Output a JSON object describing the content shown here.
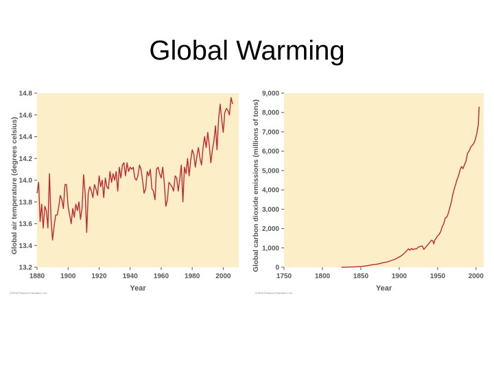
{
  "slide": {
    "title": "Global Warming"
  },
  "chart_data": [
    {
      "type": "line",
      "title": "",
      "xlabel": "Year",
      "ylabel": "Global air temperature (degrees celsius)",
      "xlim": [
        1880,
        2010
      ],
      "ylim": [
        13.2,
        14.8
      ],
      "x_ticks": [
        1880,
        1900,
        1920,
        1940,
        1960,
        1980,
        2000
      ],
      "y_ticks": [
        "13.2",
        "13.4",
        "13.6",
        "13.8",
        "14.0",
        "14.2",
        "14.4",
        "14.6",
        "14.8"
      ],
      "background_color": "#fcefc8",
      "line_color": "#c0272d",
      "grid": false,
      "credit": "©2008 Pearson Education, Inc.",
      "x": [
        1880,
        1881,
        1882,
        1883,
        1884,
        1885,
        1886,
        1887,
        1888,
        1889,
        1890,
        1891,
        1892,
        1893,
        1894,
        1895,
        1896,
        1897,
        1898,
        1899,
        1900,
        1901,
        1902,
        1903,
        1904,
        1905,
        1906,
        1907,
        1908,
        1909,
        1910,
        1911,
        1912,
        1913,
        1914,
        1915,
        1916,
        1917,
        1918,
        1919,
        1920,
        1921,
        1922,
        1923,
        1924,
        1925,
        1926,
        1927,
        1928,
        1929,
        1930,
        1931,
        1932,
        1933,
        1934,
        1935,
        1936,
        1937,
        1938,
        1939,
        1940,
        1941,
        1942,
        1943,
        1944,
        1945,
        1946,
        1947,
        1948,
        1949,
        1950,
        1951,
        1952,
        1953,
        1954,
        1955,
        1956,
        1957,
        1958,
        1959,
        1960,
        1961,
        1962,
        1963,
        1964,
        1965,
        1966,
        1967,
        1968,
        1969,
        1970,
        1971,
        1972,
        1973,
        1974,
        1975,
        1976,
        1977,
        1978,
        1979,
        1980,
        1981,
        1982,
        1983,
        1984,
        1985,
        1986,
        1987,
        1988,
        1989,
        1990,
        1991,
        1992,
        1993,
        1994,
        1995,
        1996,
        1997,
        1998,
        1999,
        2000,
        2001,
        2002,
        2003,
        2004,
        2005,
        2006
      ],
      "y": [
        13.88,
        13.98,
        13.62,
        13.78,
        13.56,
        13.76,
        13.72,
        13.56,
        14.06,
        13.64,
        13.45,
        13.58,
        13.68,
        13.68,
        13.76,
        13.86,
        13.82,
        13.74,
        13.96,
        13.96,
        13.76,
        13.68,
        13.6,
        13.74,
        13.66,
        13.78,
        13.72,
        13.8,
        13.64,
        13.74,
        14.05,
        13.88,
        13.52,
        13.88,
        13.94,
        13.9,
        13.84,
        13.96,
        13.92,
        13.86,
        14.04,
        13.94,
        14.0,
        13.84,
        14.02,
        13.94,
        13.92,
        14.08,
        13.98,
        14.06,
        14.0,
        14.08,
        13.9,
        14.12,
        14.02,
        14.14,
        14.16,
        14.04,
        14.16,
        14.08,
        14.12,
        14.1,
        14.12,
        14.02,
        14.0,
        14.04,
        14.14,
        14.1,
        14.0,
        13.88,
        13.92,
        14.08,
        14.04,
        14.1,
        13.92,
        13.9,
        13.82,
        14.1,
        14.12,
        14.06,
        14.02,
        14.12,
        13.98,
        13.76,
        13.82,
        13.98,
        13.96,
        13.94,
        13.9,
        14.04,
        14.02,
        13.9,
        14.02,
        14.14,
        13.8,
        14.12,
        14.06,
        14.2,
        14.04,
        14.18,
        14.28,
        14.24,
        14.12,
        14.22,
        14.3,
        14.2,
        14.14,
        14.3,
        14.4,
        14.3,
        14.44,
        14.32,
        14.16,
        14.28,
        14.36,
        14.5,
        14.28,
        14.56,
        14.7,
        14.56,
        14.44,
        14.62,
        14.66,
        14.64,
        14.6,
        14.76,
        14.7
      ]
    },
    {
      "type": "line",
      "title": "",
      "xlabel": "Year",
      "ylabel": "Global carbon dioxide emissions (millions of tons)",
      "xlim": [
        1750,
        2010
      ],
      "ylim": [
        0,
        9000
      ],
      "x_ticks": [
        1750,
        1800,
        1850,
        1900,
        1950,
        2000
      ],
      "y_ticks": [
        "0",
        "1,000",
        "2,000",
        "3,000",
        "4,000",
        "5,000",
        "6,000",
        "7,000",
        "8,000",
        "9,000"
      ],
      "background_color": "#fcefc8",
      "line_color": "#c0272d",
      "grid": false,
      "credit": "©2008 Pearson Education, Inc.",
      "x": [
        1825,
        1830,
        1835,
        1840,
        1845,
        1850,
        1855,
        1860,
        1865,
        1870,
        1875,
        1880,
        1885,
        1890,
        1895,
        1900,
        1903,
        1906,
        1909,
        1912,
        1914,
        1916,
        1918,
        1920,
        1922,
        1925,
        1928,
        1930,
        1932,
        1935,
        1938,
        1940,
        1942,
        1944,
        1945,
        1946,
        1948,
        1950,
        1952,
        1954,
        1956,
        1958,
        1960,
        1962,
        1964,
        1966,
        1968,
        1970,
        1972,
        1974,
        1975,
        1977,
        1979,
        1981,
        1983,
        1985,
        1987,
        1989,
        1991,
        1993,
        1995,
        1997,
        1999,
        2001,
        2003,
        2004
      ],
      "y": [
        0,
        5,
        10,
        15,
        25,
        40,
        60,
        90,
        130,
        150,
        190,
        240,
        280,
        350,
        420,
        530,
        600,
        700,
        820,
        950,
        880,
        970,
        900,
        960,
        940,
        1040,
        1080,
        1100,
        920,
        1060,
        1200,
        1300,
        1400,
        1350,
        1200,
        1380,
        1500,
        1620,
        1700,
        1850,
        2100,
        2250,
        2550,
        2600,
        2800,
        3100,
        3400,
        3800,
        4100,
        4350,
        4500,
        4700,
        5000,
        5200,
        5100,
        5300,
        5500,
        5900,
        6000,
        6200,
        6300,
        6400,
        6600,
        6900,
        7400,
        8300
      ]
    }
  ]
}
